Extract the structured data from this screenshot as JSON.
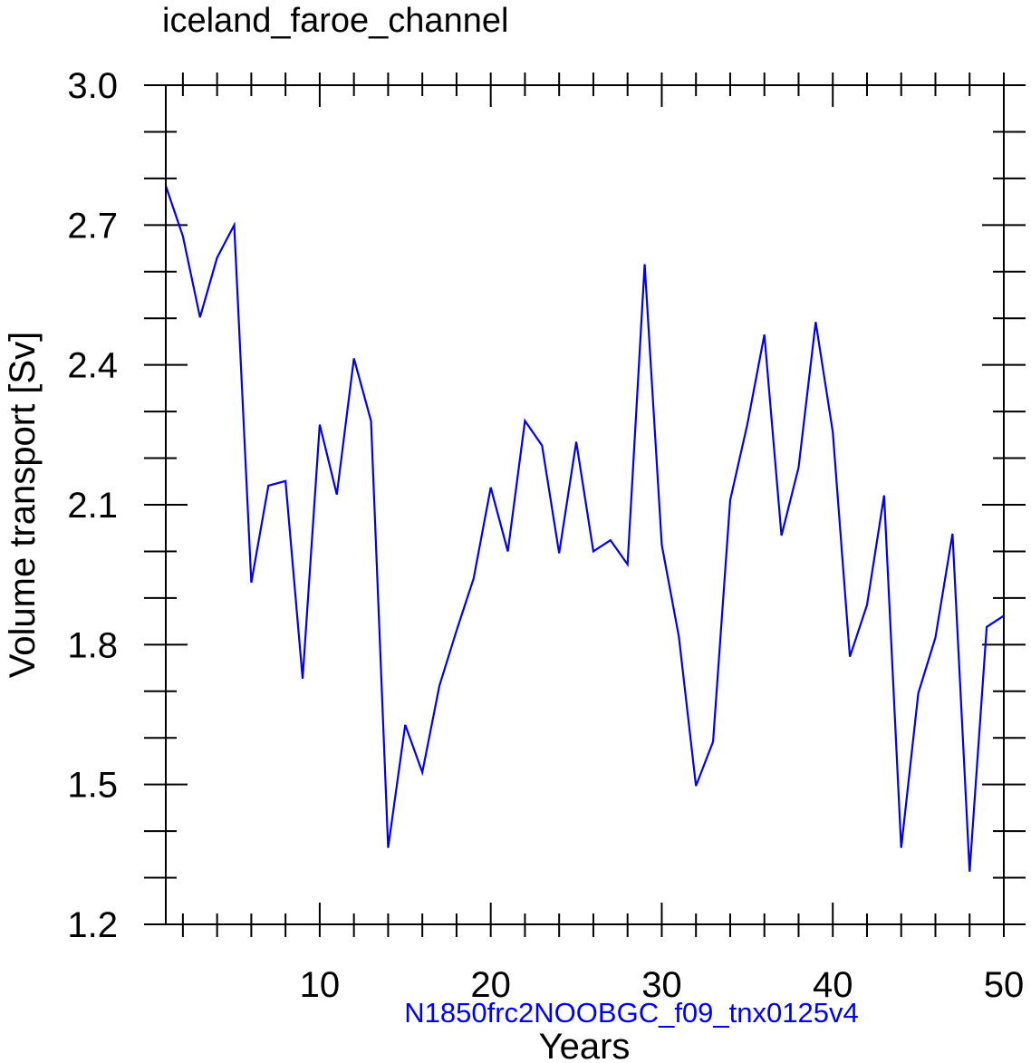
{
  "chart_data": {
    "type": "line",
    "title": "iceland_faroe_channel",
    "subtitle": "N1850frc2NOOBGC_f09_tnx0125v4",
    "xlabel": "Years",
    "ylabel": "Volume transport [Sv]",
    "xlim": [
      1,
      50
    ],
    "ylim": [
      1.2,
      3.0
    ],
    "x_ticks": [
      10,
      20,
      30,
      40,
      50
    ],
    "y_ticks": [
      1.2,
      1.5,
      1.8,
      2.1,
      2.4,
      2.7,
      3.0
    ],
    "y_tick_labels": [
      "1.2",
      "1.5",
      "1.8",
      "2.1",
      "2.4",
      "2.7",
      "3.0"
    ],
    "grid": false,
    "colors": {
      "line": "#0000ee",
      "subtitle": "#0000ee",
      "axis": "#000000"
    },
    "series": [
      {
        "x": [
          1,
          2,
          3,
          4,
          5,
          6,
          7,
          8,
          9,
          10,
          11,
          12,
          13,
          14,
          15,
          16,
          17,
          18,
          19,
          20,
          21,
          22,
          23,
          24,
          25,
          26,
          27,
          28,
          29,
          30,
          31,
          32,
          33,
          34,
          35,
          36,
          37,
          38,
          39,
          40,
          41,
          42,
          43,
          44,
          45,
          46,
          47,
          48,
          49,
          50
        ],
        "values": [
          2.784,
          2.676,
          2.502,
          2.63,
          2.7,
          1.933,
          2.141,
          2.151,
          1.727,
          2.272,
          2.122,
          2.414,
          2.28,
          1.364,
          1.628,
          1.526,
          1.712,
          1.83,
          1.942,
          2.137,
          2.0,
          2.28,
          2.227,
          1.996,
          2.235,
          2.0,
          2.024,
          1.972,
          2.616,
          2.014,
          1.817,
          1.497,
          1.592,
          2.11,
          2.272,
          2.465,
          2.034,
          2.18,
          2.492,
          2.256,
          1.774,
          1.885,
          2.12,
          1.364,
          1.696,
          1.815,
          2.038,
          1.313,
          1.838,
          1.862
        ]
      }
    ]
  }
}
